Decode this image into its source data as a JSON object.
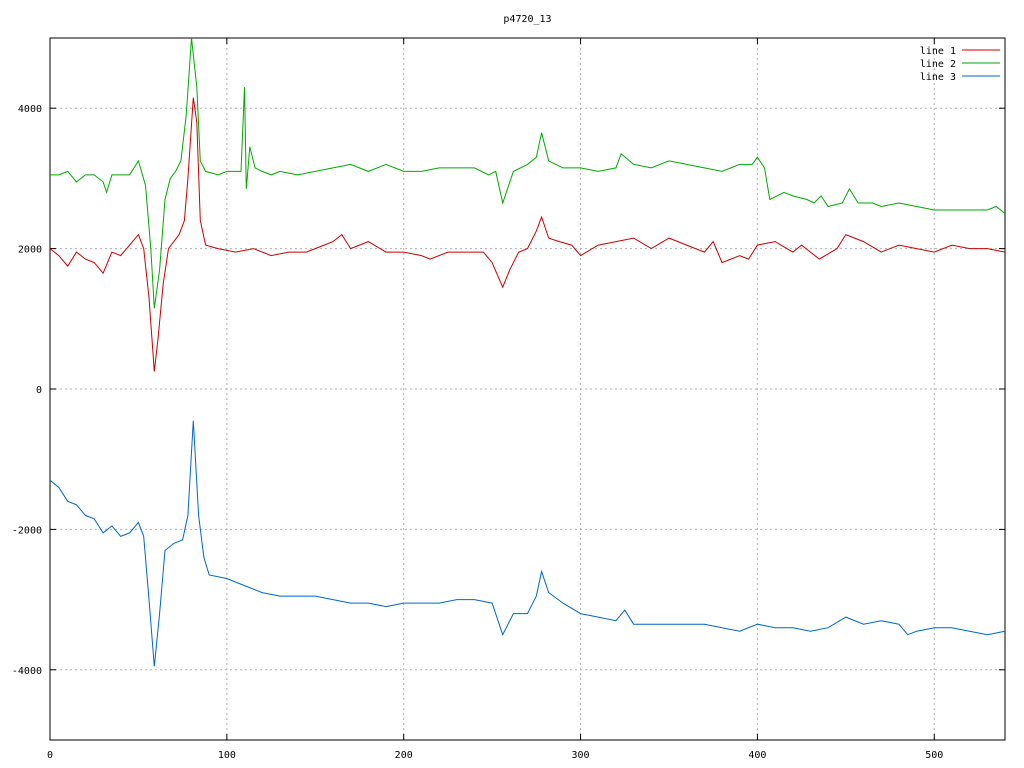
{
  "chart_data": {
    "type": "line",
    "title": "p4720_13",
    "xlabel": "",
    "ylabel": "",
    "xlim": [
      0,
      540
    ],
    "ylim": [
      -5000,
      5000
    ],
    "grid": true,
    "legend_position": "top-right",
    "x_ticks": [
      0,
      100,
      200,
      300,
      400,
      500
    ],
    "x_tick_labels": [
      "0",
      "100",
      "200",
      "300",
      "400",
      "500"
    ],
    "y_ticks": [
      -4000,
      -2000,
      0,
      2000,
      4000
    ],
    "y_tick_labels": [
      "-4000",
      "-2000",
      "0",
      "2000",
      "4000"
    ],
    "series": [
      {
        "name": "line 1",
        "color": "#cc0000",
        "points": [
          [
            0,
            2000
          ],
          [
            5,
            1900
          ],
          [
            10,
            1750
          ],
          [
            15,
            1950
          ],
          [
            20,
            1850
          ],
          [
            25,
            1800
          ],
          [
            30,
            1650
          ],
          [
            35,
            1950
          ],
          [
            40,
            1900
          ],
          [
            45,
            2050
          ],
          [
            50,
            2200
          ],
          [
            53,
            2000
          ],
          [
            56,
            1300
          ],
          [
            59,
            250
          ],
          [
            61,
            700
          ],
          [
            64,
            1500
          ],
          [
            67,
            2000
          ],
          [
            70,
            2100
          ],
          [
            73,
            2200
          ],
          [
            76,
            2400
          ],
          [
            78,
            3000
          ],
          [
            81,
            4150
          ],
          [
            83,
            3800
          ],
          [
            85,
            2400
          ],
          [
            88,
            2050
          ],
          [
            95,
            2000
          ],
          [
            105,
            1950
          ],
          [
            115,
            2000
          ],
          [
            125,
            1900
          ],
          [
            135,
            1950
          ],
          [
            145,
            1950
          ],
          [
            155,
            2050
          ],
          [
            160,
            2100
          ],
          [
            165,
            2200
          ],
          [
            170,
            2000
          ],
          [
            180,
            2100
          ],
          [
            190,
            1950
          ],
          [
            200,
            1950
          ],
          [
            210,
            1900
          ],
          [
            215,
            1850
          ],
          [
            225,
            1950
          ],
          [
            235,
            1950
          ],
          [
            245,
            1950
          ],
          [
            250,
            1800
          ],
          [
            256,
            1450
          ],
          [
            260,
            1700
          ],
          [
            265,
            1950
          ],
          [
            270,
            2000
          ],
          [
            275,
            2250
          ],
          [
            278,
            2450
          ],
          [
            282,
            2150
          ],
          [
            288,
            2100
          ],
          [
            295,
            2050
          ],
          [
            300,
            1900
          ],
          [
            310,
            2050
          ],
          [
            320,
            2100
          ],
          [
            330,
            2150
          ],
          [
            340,
            2000
          ],
          [
            350,
            2150
          ],
          [
            360,
            2050
          ],
          [
            370,
            1950
          ],
          [
            375,
            2100
          ],
          [
            380,
            1800
          ],
          [
            390,
            1900
          ],
          [
            395,
            1850
          ],
          [
            400,
            2050
          ],
          [
            410,
            2100
          ],
          [
            420,
            1950
          ],
          [
            425,
            2050
          ],
          [
            435,
            1850
          ],
          [
            445,
            2000
          ],
          [
            450,
            2200
          ],
          [
            460,
            2100
          ],
          [
            470,
            1950
          ],
          [
            480,
            2050
          ],
          [
            490,
            2000
          ],
          [
            500,
            1950
          ],
          [
            510,
            2050
          ],
          [
            520,
            2000
          ],
          [
            530,
            2000
          ],
          [
            540,
            1950
          ]
        ]
      },
      {
        "name": "line 2",
        "color": "#00aa00",
        "points": [
          [
            0,
            3050
          ],
          [
            5,
            3050
          ],
          [
            10,
            3100
          ],
          [
            15,
            2950
          ],
          [
            20,
            3050
          ],
          [
            25,
            3050
          ],
          [
            30,
            2950
          ],
          [
            32,
            2800
          ],
          [
            35,
            3050
          ],
          [
            40,
            3050
          ],
          [
            45,
            3050
          ],
          [
            50,
            3250
          ],
          [
            54,
            2900
          ],
          [
            57,
            2000
          ],
          [
            59,
            1150
          ],
          [
            62,
            1700
          ],
          [
            65,
            2700
          ],
          [
            68,
            3000
          ],
          [
            71,
            3100
          ],
          [
            74,
            3250
          ],
          [
            77,
            3900
          ],
          [
            80,
            5000
          ],
          [
            83,
            4300
          ],
          [
            85,
            3250
          ],
          [
            88,
            3100
          ],
          [
            95,
            3050
          ],
          [
            100,
            3100
          ],
          [
            105,
            3100
          ],
          [
            108,
            3100
          ],
          [
            110,
            4300
          ],
          [
            111,
            2850
          ],
          [
            113,
            3450
          ],
          [
            116,
            3150
          ],
          [
            120,
            3100
          ],
          [
            125,
            3050
          ],
          [
            130,
            3100
          ],
          [
            140,
            3050
          ],
          [
            150,
            3100
          ],
          [
            160,
            3150
          ],
          [
            170,
            3200
          ],
          [
            180,
            3100
          ],
          [
            190,
            3200
          ],
          [
            200,
            3100
          ],
          [
            210,
            3100
          ],
          [
            220,
            3150
          ],
          [
            230,
            3150
          ],
          [
            240,
            3150
          ],
          [
            248,
            3050
          ],
          [
            252,
            3100
          ],
          [
            256,
            2650
          ],
          [
            262,
            3100
          ],
          [
            270,
            3200
          ],
          [
            275,
            3300
          ],
          [
            278,
            3650
          ],
          [
            282,
            3250
          ],
          [
            290,
            3150
          ],
          [
            300,
            3150
          ],
          [
            310,
            3100
          ],
          [
            320,
            3150
          ],
          [
            323,
            3350
          ],
          [
            330,
            3200
          ],
          [
            340,
            3150
          ],
          [
            350,
            3250
          ],
          [
            360,
            3200
          ],
          [
            370,
            3150
          ],
          [
            380,
            3100
          ],
          [
            390,
            3200
          ],
          [
            397,
            3200
          ],
          [
            400,
            3300
          ],
          [
            404,
            3150
          ],
          [
            407,
            2700
          ],
          [
            415,
            2800
          ],
          [
            420,
            2750
          ],
          [
            428,
            2700
          ],
          [
            432,
            2650
          ],
          [
            436,
            2750
          ],
          [
            440,
            2600
          ],
          [
            448,
            2650
          ],
          [
            452,
            2850
          ],
          [
            457,
            2650
          ],
          [
            465,
            2650
          ],
          [
            470,
            2600
          ],
          [
            480,
            2650
          ],
          [
            490,
            2600
          ],
          [
            500,
            2550
          ],
          [
            510,
            2550
          ],
          [
            520,
            2550
          ],
          [
            530,
            2550
          ],
          [
            535,
            2600
          ],
          [
            540,
            2500
          ]
        ]
      },
      {
        "name": "line 3",
        "color": "#0066cc",
        "points": [
          [
            0,
            -1300
          ],
          [
            5,
            -1400
          ],
          [
            10,
            -1600
          ],
          [
            15,
            -1650
          ],
          [
            20,
            -1800
          ],
          [
            25,
            -1850
          ],
          [
            30,
            -2050
          ],
          [
            35,
            -1950
          ],
          [
            40,
            -2100
          ],
          [
            45,
            -2050
          ],
          [
            50,
            -1900
          ],
          [
            53,
            -2100
          ],
          [
            56,
            -3000
          ],
          [
            59,
            -3950
          ],
          [
            62,
            -3200
          ],
          [
            65,
            -2300
          ],
          [
            70,
            -2200
          ],
          [
            75,
            -2150
          ],
          [
            78,
            -1800
          ],
          [
            81,
            -450
          ],
          [
            84,
            -1800
          ],
          [
            87,
            -2400
          ],
          [
            90,
            -2650
          ],
          [
            100,
            -2700
          ],
          [
            110,
            -2800
          ],
          [
            120,
            -2900
          ],
          [
            130,
            -2950
          ],
          [
            140,
            -2950
          ],
          [
            150,
            -2950
          ],
          [
            160,
            -3000
          ],
          [
            170,
            -3050
          ],
          [
            180,
            -3050
          ],
          [
            190,
            -3100
          ],
          [
            200,
            -3050
          ],
          [
            210,
            -3050
          ],
          [
            220,
            -3050
          ],
          [
            230,
            -3000
          ],
          [
            240,
            -3000
          ],
          [
            250,
            -3050
          ],
          [
            256,
            -3500
          ],
          [
            262,
            -3200
          ],
          [
            270,
            -3200
          ],
          [
            275,
            -2950
          ],
          [
            278,
            -2600
          ],
          [
            282,
            -2900
          ],
          [
            290,
            -3050
          ],
          [
            300,
            -3200
          ],
          [
            310,
            -3250
          ],
          [
            320,
            -3300
          ],
          [
            325,
            -3150
          ],
          [
            330,
            -3350
          ],
          [
            340,
            -3350
          ],
          [
            350,
            -3350
          ],
          [
            360,
            -3350
          ],
          [
            370,
            -3350
          ],
          [
            380,
            -3400
          ],
          [
            390,
            -3450
          ],
          [
            400,
            -3350
          ],
          [
            410,
            -3400
          ],
          [
            420,
            -3400
          ],
          [
            430,
            -3450
          ],
          [
            440,
            -3400
          ],
          [
            450,
            -3250
          ],
          [
            460,
            -3350
          ],
          [
            470,
            -3300
          ],
          [
            480,
            -3350
          ],
          [
            485,
            -3500
          ],
          [
            490,
            -3450
          ],
          [
            500,
            -3400
          ],
          [
            510,
            -3400
          ],
          [
            520,
            -3450
          ],
          [
            530,
            -3500
          ],
          [
            540,
            -3450
          ]
        ]
      }
    ]
  }
}
